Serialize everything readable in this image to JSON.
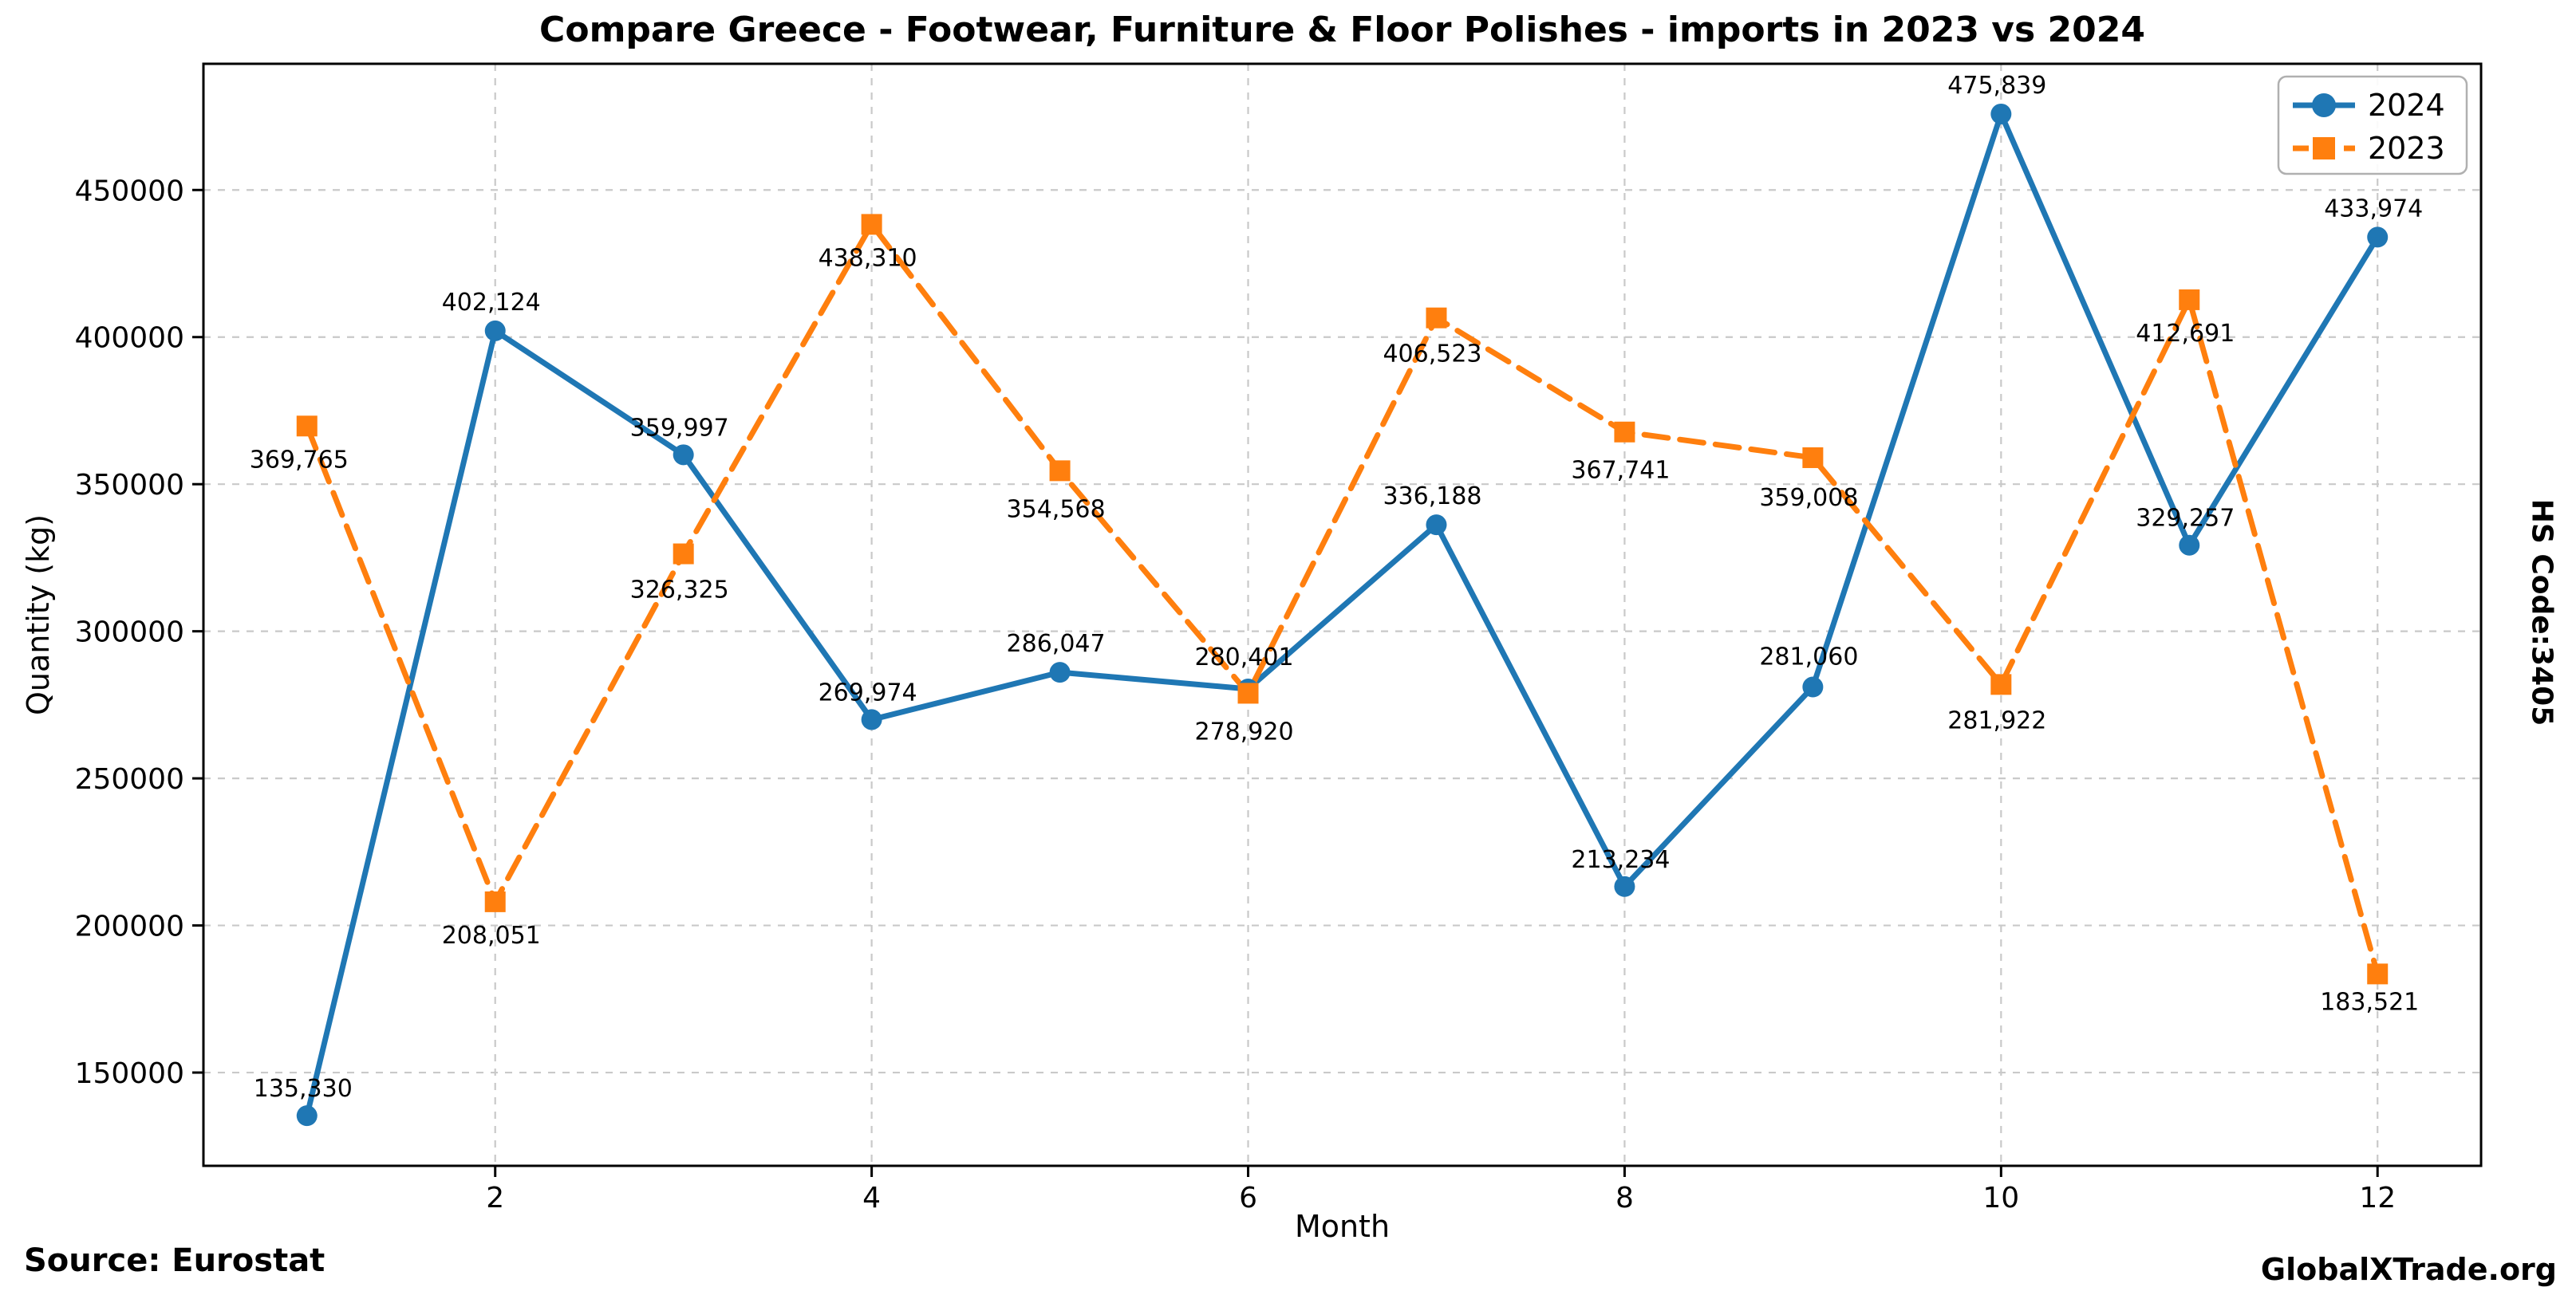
{
  "title": "Compare Greece - Footwear, Furniture & Floor Polishes - imports in 2023 vs 2024",
  "source_note": "Source: Eurostat",
  "watermark": "GlobalXTrade.org",
  "chart_data": {
    "type": "line",
    "title": "Compare Greece - Footwear, Furniture & Floor Polishes - imports in 2023 vs 2024",
    "xlabel": "Month",
    "ylabel": "Quantity (kg)",
    "right_label": "HS Code:3405",
    "x": [
      1,
      2,
      3,
      4,
      5,
      6,
      7,
      8,
      9,
      10,
      11,
      12
    ],
    "xticks": [
      2,
      4,
      6,
      8,
      10,
      12
    ],
    "yticks": [
      150000,
      200000,
      250000,
      300000,
      350000,
      400000,
      450000
    ],
    "xlim": [
      0.45,
      12.55
    ],
    "ylim": [
      118300,
      492900
    ],
    "grid": true,
    "grid_color": "#c9c9c9",
    "spine_color": "#000000",
    "legend_position": "upper right",
    "series": [
      {
        "name": "2024",
        "color": "#1f77b4",
        "line_style": "solid",
        "marker": "circle",
        "values": [
          135330,
          402124,
          359997,
          269974,
          286047,
          280401,
          336188,
          213234,
          281060,
          475839,
          329257,
          433974
        ],
        "labels": [
          "135,330",
          "402,124",
          "359,997",
          "269,974",
          "286,047",
          "280,401",
          "336,188",
          "213,234",
          "281,060",
          "475,839",
          "329,257",
          "433,974"
        ],
        "label_offsets": [
          [
            -5,
            -24
          ],
          [
            -5,
            -26
          ],
          [
            -5,
            -24
          ],
          [
            -5,
            -24
          ],
          [
            -5,
            -26
          ],
          [
            -5,
            -30
          ],
          [
            -5,
            -26
          ],
          [
            -5,
            -24
          ],
          [
            -5,
            -28
          ],
          [
            -5,
            -26
          ],
          [
            -5,
            -24
          ],
          [
            -5,
            -26
          ]
        ]
      },
      {
        "name": "2023",
        "color": "#ff7f0e",
        "line_style": "dashed",
        "marker": "square",
        "values": [
          369765,
          208051,
          326325,
          438310,
          354568,
          278920,
          406523,
          367741,
          359008,
          281922,
          412691,
          183521
        ],
        "labels": [
          "369,765",
          "208,051",
          "326,325",
          "438,310",
          "354,568",
          "278,920",
          "406,523",
          "367,741",
          "359,008",
          "281,922",
          "412,691",
          "183,521"
        ],
        "label_offsets": [
          [
            -10,
            52
          ],
          [
            -5,
            52
          ],
          [
            -5,
            55
          ],
          [
            -5,
            52
          ],
          [
            -5,
            58
          ],
          [
            -5,
            58
          ],
          [
            -5,
            55
          ],
          [
            -5,
            58
          ],
          [
            -5,
            60
          ],
          [
            -5,
            55
          ],
          [
            -5,
            52
          ],
          [
            -10,
            45
          ]
        ]
      }
    ]
  }
}
